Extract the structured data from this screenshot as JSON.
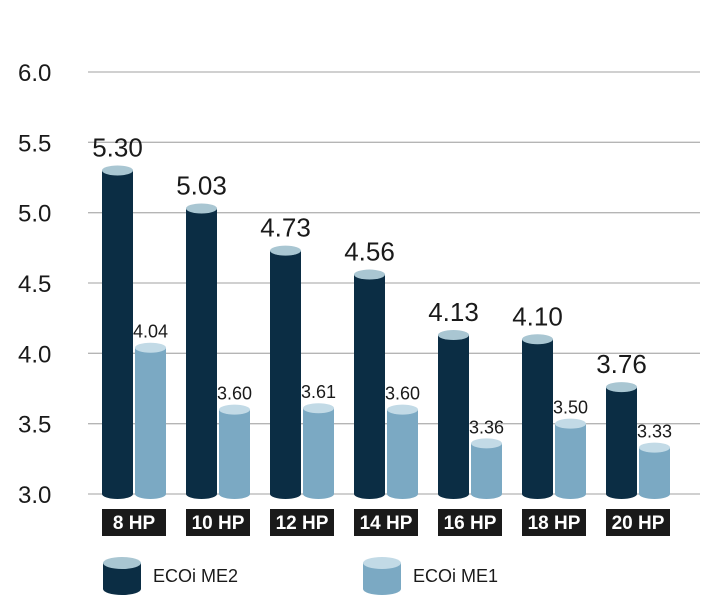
{
  "chart_data": {
    "type": "bar",
    "categories": [
      "8 HP",
      "10 HP",
      "12 HP",
      "14 HP",
      "16 HP",
      "18 HP",
      "20 HP"
    ],
    "series": [
      {
        "name": "ECOi ME2",
        "values": [
          5.3,
          5.03,
          4.73,
          4.56,
          4.13,
          4.1,
          3.76
        ],
        "labels": [
          "5.30",
          "5.03",
          "4.73",
          "4.56",
          "4.13",
          "4.10",
          "3.76"
        ],
        "color": "#0b2d44",
        "cap": "#a9c6d2"
      },
      {
        "name": "ECOi ME1",
        "values": [
          4.04,
          3.6,
          3.61,
          3.6,
          3.36,
          3.5,
          3.33
        ],
        "labels": [
          "4.04",
          "3.60",
          "3.61",
          "3.60",
          "3.36",
          "3.50",
          "3.33"
        ],
        "color": "#7ba9c3",
        "cap": "#c2dae6"
      }
    ],
    "yticks": [
      "3.0",
      "3.5",
      "4.0",
      "4.5",
      "5.0",
      "5.5",
      "6.0"
    ],
    "ylim": [
      3.0,
      6.0
    ],
    "grid": true,
    "legend": "bottom",
    "title": "",
    "xlabel": "",
    "ylabel": ""
  }
}
